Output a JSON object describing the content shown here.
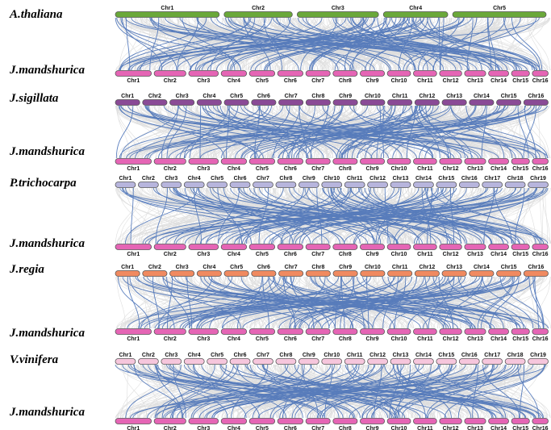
{
  "colors": {
    "synteny_bg": "#d9d9d9",
    "collinear": "#4a72b8",
    "jm_chr": "#e565b5"
  },
  "panels": [
    {
      "species": "A.thaliana",
      "target": "J.mandshurica",
      "top_color": "#6aa83a",
      "top_chromosomes": [
        "Chr1",
        "Chr2",
        "Chr3",
        "Chr4",
        "Chr5"
      ],
      "bottom_chromosomes": [
        "Chr1",
        "Chr2",
        "Chr3",
        "Chr4",
        "Chr5",
        "Chr6",
        "Chr7",
        "Chr8",
        "Chr9",
        "Chr10",
        "Chr11",
        "Chr12",
        "Chr13",
        "Chr14",
        "Chr15",
        "Chr16"
      ]
    },
    {
      "species": "J.sigillata",
      "target": "J.mandshurica",
      "top_color": "#8a4a96",
      "top_chromosomes": [
        "Chr1",
        "Chr2",
        "Chr3",
        "Chr4",
        "Chr5",
        "Chr6",
        "Chr7",
        "Chr8",
        "Chr9",
        "Chr10",
        "Chr11",
        "Chr12",
        "Chr13",
        "Chr14",
        "Chr15",
        "Chr16"
      ],
      "bottom_chromosomes": [
        "Chr1",
        "Chr2",
        "Chr3",
        "Chr4",
        "Chr5",
        "Chr6",
        "Chr7",
        "Chr8",
        "Chr9",
        "Chr10",
        "Chr11",
        "Chr12",
        "Chr13",
        "Chr14",
        "Chr15",
        "Chr16"
      ]
    },
    {
      "species": "P.trichocarpa",
      "target": "J.mandshurica",
      "top_color": "#b7b5dd",
      "top_chromosomes": [
        "Chr1",
        "Chr2",
        "Chr3",
        "Chr4",
        "Chr5",
        "Chr6",
        "Chr7",
        "Chr8",
        "Chr9",
        "Chr10",
        "Chr11",
        "Chr12",
        "Chr13",
        "Chr14",
        "Chr15",
        "Chr16",
        "Chr17",
        "Chr18",
        "Chr19"
      ],
      "bottom_chromosomes": [
        "Chr1",
        "Chr2",
        "Chr3",
        "Chr4",
        "Chr5",
        "Chr6",
        "Chr7",
        "Chr8",
        "Chr9",
        "Chr10",
        "Chr11",
        "Chr12",
        "Chr13",
        "Chr14",
        "Chr15",
        "Chr16"
      ]
    },
    {
      "species": "J.regia",
      "target": "J.mandshurica",
      "top_color": "#f08a60",
      "top_chromosomes": [
        "Chr1",
        "Chr2",
        "Chr3",
        "Chr4",
        "Chr5",
        "Chr6",
        "Chr7",
        "Chr8",
        "Chr9",
        "Chr10",
        "Chr11",
        "Chr12",
        "Chr13",
        "Chr14",
        "Chr15",
        "Chr16"
      ],
      "bottom_chromosomes": [
        "Chr1",
        "Chr2",
        "Chr3",
        "Chr4",
        "Chr5",
        "Chr6",
        "Chr7",
        "Chr8",
        "Chr9",
        "Chr10",
        "Chr11",
        "Chr12",
        "Chr13",
        "Chr14",
        "Chr15",
        "Chr16"
      ]
    },
    {
      "species": "V.vinifera",
      "target": "J.mandshurica",
      "top_color": "#f6c6dc",
      "top_chromosomes": [
        "Chr1",
        "Chr2",
        "Chr3",
        "Chr4",
        "Chr5",
        "Chr6",
        "Chr7",
        "Chr8",
        "Chr9",
        "Chr10",
        "Chr11",
        "Chr12",
        "Chr13",
        "Chr14",
        "Chr15",
        "Chr16",
        "Chr17",
        "Chr18",
        "Chr19"
      ],
      "bottom_chromosomes": [
        "Chr1",
        "Chr2",
        "Chr3",
        "Chr4",
        "Chr5",
        "Chr6",
        "Chr7",
        "Chr8",
        "Chr9",
        "Chr10",
        "Chr11",
        "Chr12",
        "Chr13",
        "Chr14",
        "Chr15",
        "Chr16"
      ]
    }
  ]
}
